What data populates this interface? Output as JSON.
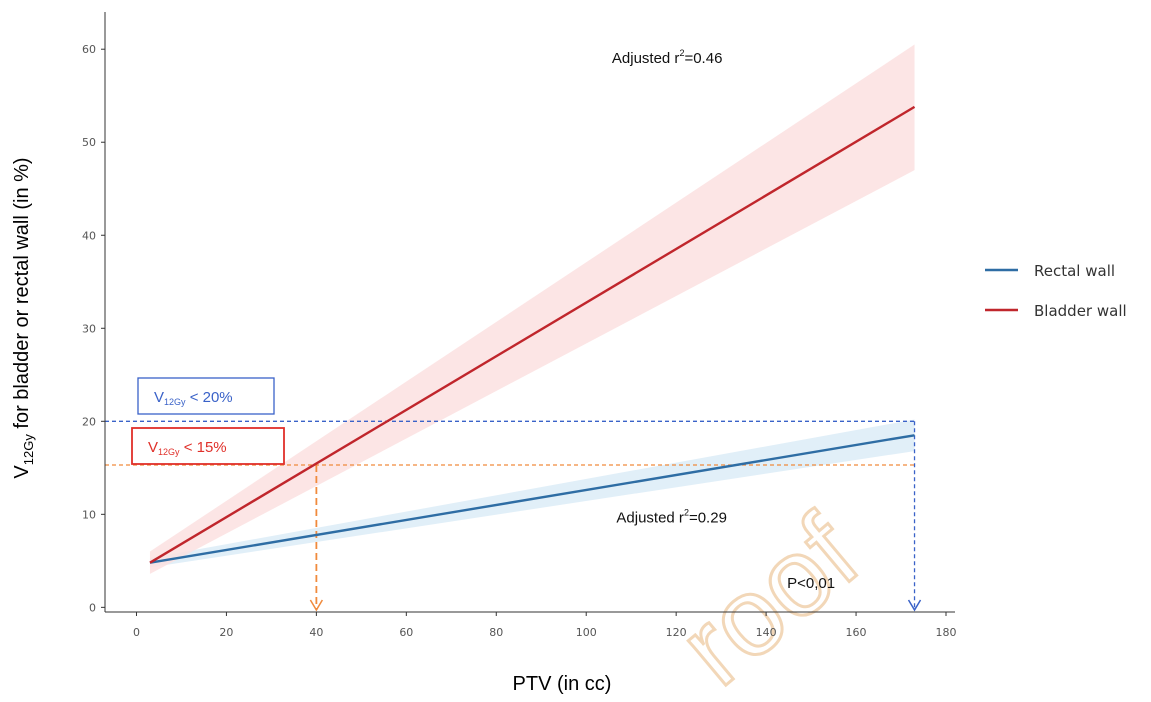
{
  "colors": {
    "rectal": "#2e6da4",
    "rectal_band": "#dcecf7",
    "bladder": "#c0262c",
    "bladder_band": "#fbe1e1",
    "threshold_blue": "#3a62c8",
    "threshold_orange": "#f08a3c",
    "box_blue": "#3a62c8",
    "box_red": "#e0302a",
    "axis": "#333333"
  },
  "chart_data": {
    "type": "line",
    "xlabel": "PTV (in cc)",
    "ylabel_prefix": "V",
    "ylabel_sub": "12Gy",
    "ylabel_suffix": " for bladder or rectal wall (in %)",
    "xlim": [
      -7,
      182
    ],
    "ylim": [
      -0.5,
      64
    ],
    "xticks": [
      0,
      20,
      40,
      60,
      80,
      100,
      120,
      140,
      160,
      180
    ],
    "yticks": [
      0,
      10,
      20,
      30,
      40,
      50,
      60
    ],
    "grid": false,
    "legend_position": "right",
    "series": [
      {
        "name": "Rectal wall",
        "color_key": "rectal",
        "x": [
          3,
          173
        ],
        "y": [
          4.8,
          18.5
        ],
        "band_lower": [
          4.3,
          16.8
        ],
        "band_upper": [
          5.3,
          20.2
        ]
      },
      {
        "name": "Bladder wall",
        "color_key": "bladder",
        "x": [
          3,
          173
        ],
        "y": [
          4.8,
          53.8
        ],
        "band_lower": [
          3.6,
          47.0
        ],
        "band_upper": [
          6.0,
          60.5
        ]
      }
    ],
    "thresholds": [
      {
        "prefix": "V",
        "sub": "12Gy",
        "suffix": " < 20%",
        "y": 20,
        "x_end": 173,
        "drop_x": 173,
        "color_key": "threshold_blue",
        "box_color_key": "box_blue"
      },
      {
        "prefix": "V",
        "sub": "12Gy",
        "suffix": " < 15%",
        "y": 15.3,
        "x_end": 173,
        "drop_x": 40,
        "color_key": "threshold_orange",
        "box_color_key": "box_red"
      }
    ],
    "annotations": [
      {
        "prefix": "Adjusted r",
        "sup": "2",
        "suffix": "=0.46",
        "x": 118,
        "y": 58.5
      },
      {
        "prefix": "Adjusted r",
        "sup": "2",
        "suffix": "=0.29",
        "x": 119,
        "y": 9.1
      },
      {
        "text": "P<0,01",
        "x": 150,
        "y": 2.1
      }
    ]
  },
  "watermark": {
    "text": "roof"
  }
}
